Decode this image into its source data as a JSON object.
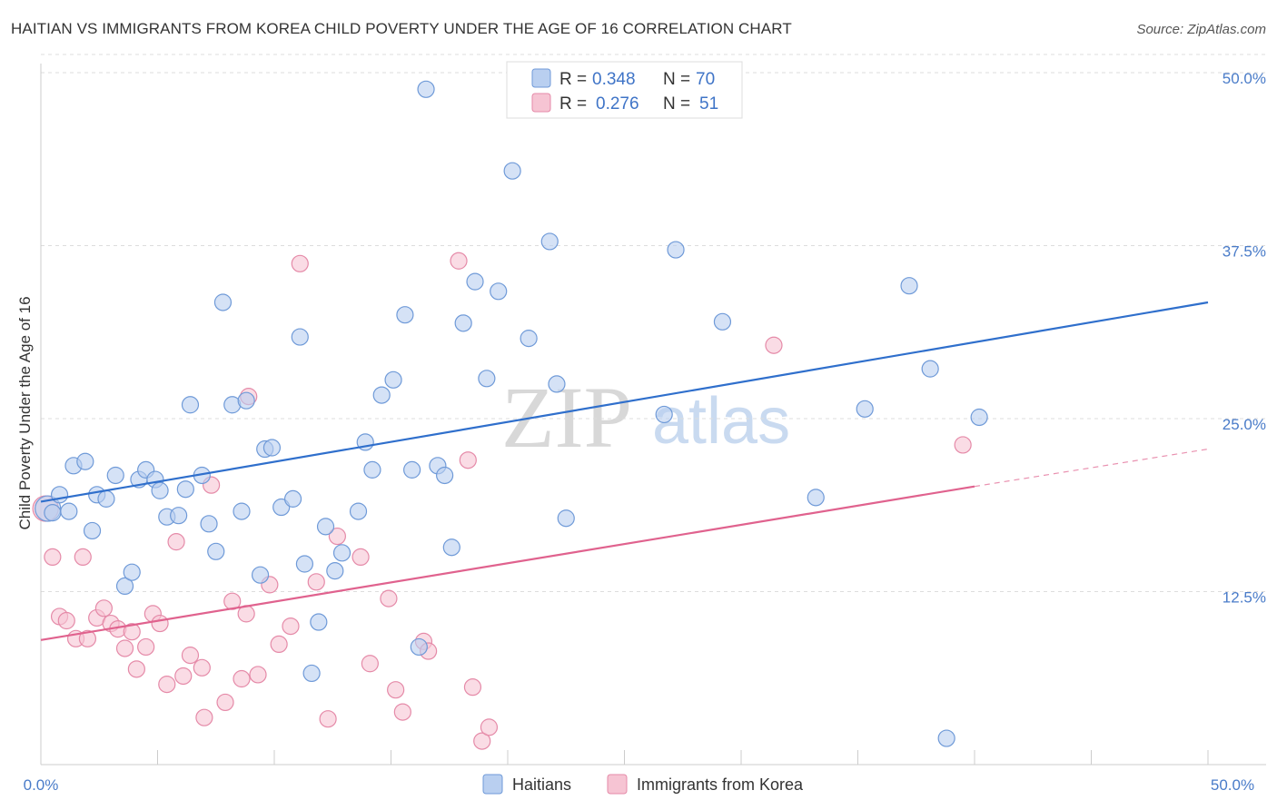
{
  "header": {
    "title": "HAITIAN VS IMMIGRANTS FROM KOREA CHILD POVERTY UNDER THE AGE OF 16 CORRELATION CHART",
    "source": "Source: ZipAtlas.com"
  },
  "watermark": {
    "zip": "ZIP",
    "atlas": "atlas"
  },
  "colors": {
    "haitians_fill": "#b9cff0",
    "haitians_stroke": "#6f9ad8",
    "haitians_line": "#2f6fcc",
    "korea_fill": "#f6c4d3",
    "korea_stroke": "#e58aa8",
    "korea_line": "#e0628e",
    "tick_label": "#4a7cc9",
    "grid": "#dddddd"
  },
  "legend": {
    "rows": [
      {
        "r_label": "R = ",
        "r_value": "0.348",
        "n_label": "N = ",
        "n_value": "70"
      },
      {
        "r_label": "R = ",
        "r_value": "0.276",
        "n_label": "N = ",
        "n_value": "51"
      }
    ]
  },
  "bottom_legend": [
    "Haitians",
    "Immigrants from Korea"
  ],
  "chart_data": {
    "type": "scatter",
    "title": "HAITIAN VS IMMIGRANTS FROM KOREA CHILD POVERTY UNDER THE AGE OF 16 CORRELATION CHART",
    "xlabel": "",
    "ylabel": "Child Poverty Under the Age of 16",
    "xlim": [
      0,
      50
    ],
    "ylim": [
      0,
      50
    ],
    "x_tick_labels": [
      "0.0%",
      "50.0%"
    ],
    "y_ticks": [
      12.5,
      25.0,
      37.5,
      50.0
    ],
    "y_tick_labels": [
      "12.5%",
      "25.0%",
      "37.5%",
      "50.0%"
    ],
    "grid": "horizontal dashed",
    "legend_position": "top-center",
    "series": [
      {
        "name": "Haitians",
        "R": 0.348,
        "N": 70,
        "trend": {
          "x": [
            0,
            50
          ],
          "y": [
            19.0,
            33.4
          ]
        },
        "points": [
          [
            0.3,
            18.5
          ],
          [
            0.5,
            18.2
          ],
          [
            0.8,
            19.5
          ],
          [
            1.2,
            18.3
          ],
          [
            1.4,
            21.6
          ],
          [
            1.9,
            21.9
          ],
          [
            2.2,
            16.9
          ],
          [
            2.4,
            19.5
          ],
          [
            2.8,
            19.2
          ],
          [
            3.2,
            20.9
          ],
          [
            3.6,
            12.9
          ],
          [
            3.9,
            13.9
          ],
          [
            4.2,
            20.6
          ],
          [
            4.5,
            21.3
          ],
          [
            4.9,
            20.6
          ],
          [
            5.1,
            19.8
          ],
          [
            5.4,
            17.9
          ],
          [
            5.9,
            18.0
          ],
          [
            6.2,
            19.9
          ],
          [
            6.4,
            26.0
          ],
          [
            6.9,
            20.9
          ],
          [
            7.2,
            17.4
          ],
          [
            7.5,
            15.4
          ],
          [
            7.8,
            33.4
          ],
          [
            8.2,
            26.0
          ],
          [
            8.6,
            18.3
          ],
          [
            8.8,
            26.3
          ],
          [
            9.4,
            13.7
          ],
          [
            9.6,
            22.8
          ],
          [
            9.9,
            22.9
          ],
          [
            10.3,
            18.6
          ],
          [
            10.8,
            19.2
          ],
          [
            11.1,
            30.9
          ],
          [
            11.3,
            14.5
          ],
          [
            11.6,
            6.6
          ],
          [
            11.9,
            10.3
          ],
          [
            12.2,
            17.2
          ],
          [
            12.6,
            14.0
          ],
          [
            12.9,
            15.3
          ],
          [
            13.6,
            18.3
          ],
          [
            13.9,
            23.3
          ],
          [
            14.2,
            21.3
          ],
          [
            14.6,
            26.7
          ],
          [
            15.1,
            27.8
          ],
          [
            15.6,
            32.5
          ],
          [
            15.9,
            21.3
          ],
          [
            16.2,
            8.5
          ],
          [
            16.5,
            48.8
          ],
          [
            17.0,
            21.6
          ],
          [
            17.3,
            20.9
          ],
          [
            17.6,
            15.7
          ],
          [
            18.1,
            31.9
          ],
          [
            18.6,
            34.9
          ],
          [
            19.1,
            27.9
          ],
          [
            19.6,
            34.2
          ],
          [
            20.2,
            42.9
          ],
          [
            20.9,
            30.8
          ],
          [
            21.8,
            37.8
          ],
          [
            22.1,
            27.5
          ],
          [
            22.5,
            17.8
          ],
          [
            26.7,
            25.3
          ],
          [
            27.2,
            37.2
          ],
          [
            28.3,
            47.7
          ],
          [
            29.2,
            32.0
          ],
          [
            33.2,
            19.3
          ],
          [
            35.3,
            25.7
          ],
          [
            37.2,
            34.6
          ],
          [
            38.1,
            28.6
          ],
          [
            38.8,
            1.9
          ],
          [
            40.2,
            25.1
          ]
        ]
      },
      {
        "name": "Immigrants from Korea",
        "R": 0.276,
        "N": 51,
        "trend": {
          "x": [
            0,
            40
          ],
          "y": [
            9.0,
            20.1
          ]
        },
        "trend_dashed_extension": {
          "x": [
            40,
            50
          ],
          "y": [
            20.1,
            22.8
          ]
        },
        "points": [
          [
            0.2,
            18.5
          ],
          [
            0.5,
            15.0
          ],
          [
            0.8,
            10.7
          ],
          [
            1.1,
            10.4
          ],
          [
            1.5,
            9.1
          ],
          [
            1.8,
            15.0
          ],
          [
            2.0,
            9.1
          ],
          [
            2.4,
            10.6
          ],
          [
            2.7,
            11.3
          ],
          [
            3.0,
            10.2
          ],
          [
            3.3,
            9.8
          ],
          [
            3.6,
            8.4
          ],
          [
            3.9,
            9.6
          ],
          [
            4.1,
            6.9
          ],
          [
            4.5,
            8.5
          ],
          [
            4.8,
            10.9
          ],
          [
            5.1,
            10.2
          ],
          [
            5.4,
            5.8
          ],
          [
            5.8,
            16.1
          ],
          [
            6.1,
            6.4
          ],
          [
            6.4,
            7.9
          ],
          [
            6.9,
            7.0
          ],
          [
            7.0,
            3.4
          ],
          [
            7.3,
            20.2
          ],
          [
            7.9,
            4.5
          ],
          [
            8.2,
            11.8
          ],
          [
            8.6,
            6.2
          ],
          [
            8.8,
            10.9
          ],
          [
            8.9,
            26.6
          ],
          [
            9.3,
            6.5
          ],
          [
            9.8,
            13.0
          ],
          [
            10.2,
            8.7
          ],
          [
            10.7,
            10.0
          ],
          [
            11.1,
            36.2
          ],
          [
            11.8,
            13.2
          ],
          [
            12.3,
            3.3
          ],
          [
            12.7,
            16.5
          ],
          [
            13.7,
            15.0
          ],
          [
            14.1,
            7.3
          ],
          [
            14.9,
            12.0
          ],
          [
            15.2,
            5.4
          ],
          [
            15.5,
            3.8
          ],
          [
            16.4,
            8.9
          ],
          [
            16.6,
            8.2
          ],
          [
            17.9,
            36.4
          ],
          [
            18.3,
            22.0
          ],
          [
            18.5,
            5.6
          ],
          [
            18.9,
            1.7
          ],
          [
            19.2,
            2.7
          ],
          [
            31.4,
            30.3
          ],
          [
            39.5,
            23.1
          ]
        ]
      }
    ]
  }
}
